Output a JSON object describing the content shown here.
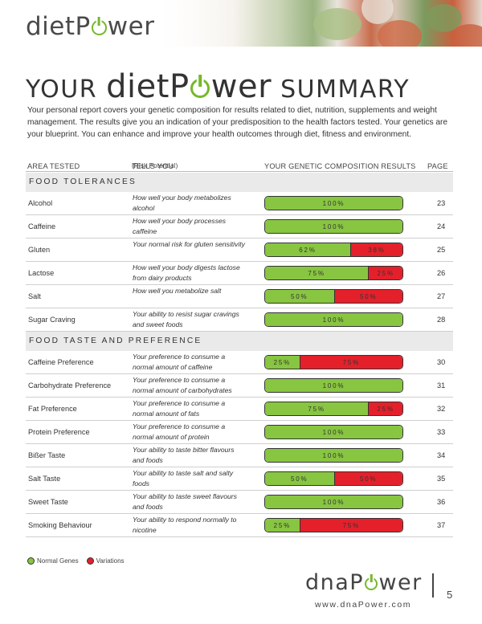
{
  "header": {
    "logo_prefix": "diet",
    "logo_suffix": "wer",
    "logo_p": "P"
  },
  "title": {
    "your": "YOUR",
    "brand_prefix": "diet",
    "brand_p": "P",
    "brand_suffix": "wer",
    "summary": "SUMMARY"
  },
  "intro": "Your personal report covers your genetic composition for results related to diet, nutrition, supplements and weight management. The results give you an indication of your predisposition to the health factors tested. Your genetics are your blueprint. You can enhance and improve your health outcomes through diet, fitness and environment.",
  "table_header": {
    "area": "AREA TESTED",
    "tells": "TELLS YOU",
    "tells_small": "(Risk Potential)",
    "composition": "YOUR GENETIC COMPOSITION RESULTS",
    "page": "PAGE"
  },
  "sections": [
    {
      "title": "FOOD TOLERANCES",
      "rows": [
        {
          "area": "Alcohol",
          "desc": "How well your body metabolizes alcohol",
          "green": 100,
          "red": 0,
          "green_label": "100%",
          "red_label": "",
          "page": "23"
        },
        {
          "area": "Caffeine",
          "desc": "How well your body processes caffeine",
          "green": 100,
          "red": 0,
          "green_label": "100%",
          "red_label": "",
          "page": "24"
        },
        {
          "area": "Gluten",
          "desc": "Your normal risk for gluten sensitivity",
          "green": 62,
          "red": 38,
          "green_label": "62%",
          "red_label": "38%",
          "page": "25"
        },
        {
          "area": "Lactose",
          "desc": "How well your body digests lactose from dairy products",
          "green": 75,
          "red": 25,
          "green_label": "75%",
          "red_label": "25%",
          "page": "26"
        },
        {
          "area": "Salt",
          "desc": "How well you metabolize salt",
          "green": 50,
          "red": 50,
          "green_label": "50%",
          "red_label": "50%",
          "page": "27"
        },
        {
          "area": "Sugar Craving",
          "desc": "Your ability to resist sugar cravings and sweet foods",
          "green": 100,
          "red": 0,
          "green_label": "100%",
          "red_label": "",
          "page": "28"
        }
      ]
    },
    {
      "title": "FOOD TASTE AND PREFERENCE",
      "rows": [
        {
          "area": "Caffeine Preference",
          "desc": "Your preference to consume a normal amount of caffeine",
          "green": 25,
          "red": 75,
          "green_label": "25%",
          "red_label": "75%",
          "page": "30"
        },
        {
          "area": "Carbohydrate Preference",
          "desc": "Your preference to consume a normal amount of carbohydrates",
          "green": 100,
          "red": 0,
          "green_label": "100%",
          "red_label": "",
          "page": "31"
        },
        {
          "area": "Fat Preference",
          "desc": "Your preference to consume a normal amount of fats",
          "green": 75,
          "red": 25,
          "green_label": "75%",
          "red_label": "25%",
          "page": "32"
        },
        {
          "area": "Protein Preference",
          "desc": "Your preference to consume a normal amount of protein",
          "green": 100,
          "red": 0,
          "green_label": "100%",
          "red_label": "",
          "page": "33"
        },
        {
          "area": "Bißer Taste",
          "desc": "Your ability to taste bitter flavours and foods",
          "green": 100,
          "red": 0,
          "green_label": "100%",
          "red_label": "",
          "page": "34"
        },
        {
          "area": "Salt Taste",
          "desc": "Your ability to taste salt and salty foods",
          "green": 50,
          "red": 50,
          "green_label": "50%",
          "red_label": "50%",
          "page": "35"
        },
        {
          "area": "Sweet Taste",
          "desc": "Your ability to taste sweet flavours and foods",
          "green": 100,
          "red": 0,
          "green_label": "100%",
          "red_label": "",
          "page": "36"
        },
        {
          "area": "Smoking Behaviour",
          "desc": "Your ability to respond normally to nicotine",
          "green": 25,
          "red": 75,
          "green_label": "25%",
          "red_label": "75%",
          "page": "37"
        }
      ]
    }
  ],
  "legend": {
    "normal": "Normal Genes",
    "variations": "Variations",
    "normal_color": "#88c541",
    "variation_color": "#e4202b"
  },
  "footer": {
    "logo_prefix": "dna",
    "logo_p": "P",
    "logo_suffix": "wer",
    "url": "www.dnaPower.com",
    "page_number": "5"
  }
}
